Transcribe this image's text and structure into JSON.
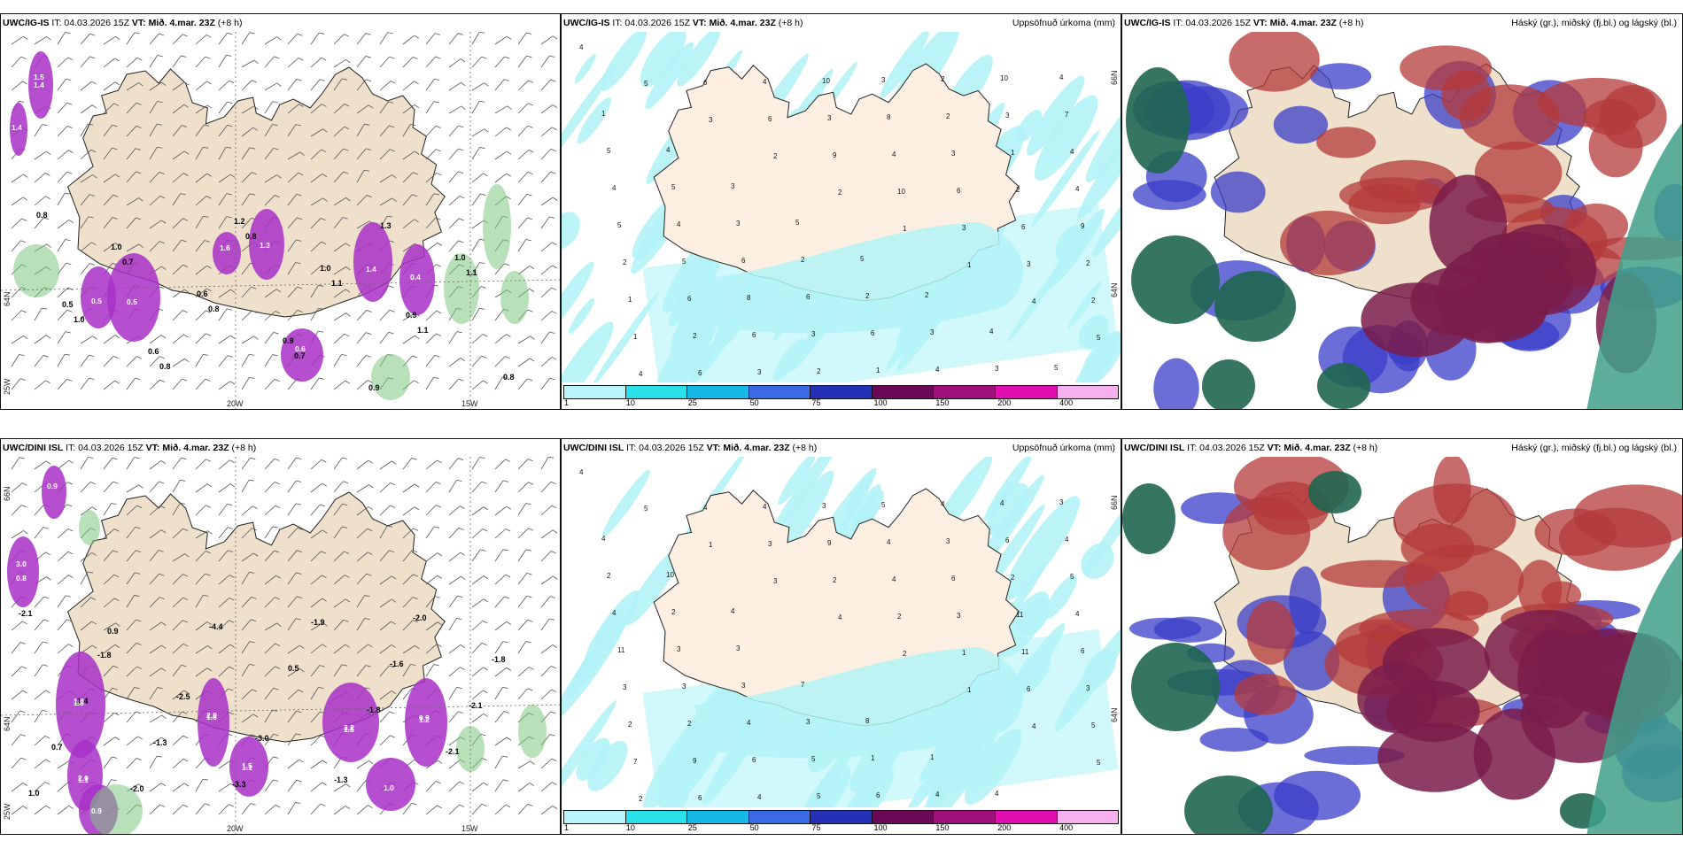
{
  "colors": {
    "land": "#efe0cb",
    "precip_light": "#b3f3f6",
    "magenta": "#a830c8",
    "green": "#7fc87f",
    "highcloud": "#1f6650",
    "midcloud": "#b43a3a",
    "lowcloud": "#3a3ec8",
    "combo": "#7a1c4a"
  },
  "rows": [
    {
      "model": "UWC/IG-IS",
      "it_label": "IT:",
      "it_value": "04.03.2026 15Z",
      "vt_label": "VT:",
      "vt_value": "Mið. 4.mar. 23Z",
      "lead": "(+8 h)",
      "lat_labels": [
        "66N",
        "64N"
      ],
      "lon_labels": [
        "20W",
        "15W"
      ],
      "left_lat": [
        "64N",
        "25W"
      ],
      "panel_b_numbers": [
        "4",
        "5",
        "3",
        "2",
        "2",
        "1",
        "1",
        "4",
        "5",
        "4",
        "6",
        "6",
        "9",
        "10",
        "3",
        "3",
        "2",
        "1",
        "6",
        "4",
        "3",
        "4",
        "6",
        "6",
        "2",
        "1",
        "2",
        "3",
        "10",
        "8",
        "3",
        "2",
        "9",
        "2",
        "6",
        "6",
        "2",
        "3",
        "2",
        "1",
        "4",
        "5",
        "5",
        "8",
        "3",
        "1",
        "2",
        "3",
        "4",
        "4",
        "4",
        "6",
        "6",
        "6",
        "4",
        "10",
        "7",
        "5",
        "5",
        "3",
        "2",
        "2",
        "3",
        "3",
        "4",
        "1",
        "4",
        "3",
        "5",
        "5",
        "2",
        "4",
        "5"
      ],
      "panel_a_bold": [
        "0.8",
        "0.7",
        "0.8",
        "0.7",
        "1.3",
        "1.1",
        "1.0",
        "0.8",
        "0.8",
        "1.1",
        "1.1",
        "0.8",
        "1.0",
        "0.6",
        "0.9",
        "0.9",
        "1.0",
        "0.5",
        "0.6",
        "1.2",
        "1.0",
        "0.9"
      ],
      "panel_a_white": [
        "1.5",
        "1.4",
        "0.5",
        "1.6",
        "1.3",
        "1.4",
        "0.4",
        "0.5",
        "0.6",
        "1.4"
      ]
    },
    {
      "model": "UWC/DINI ISL",
      "it_label": "IT:",
      "it_value": "04.03.2026 15Z",
      "vt_label": "VT:",
      "vt_value": "Mið. 4.mar. 23Z",
      "lead": "(+8 h)",
      "lat_labels": [
        "66N",
        "64N"
      ],
      "lon_labels": [
        "20W",
        "15W"
      ],
      "left_lat": [
        "66N",
        "64N",
        "25W"
      ],
      "panel_b_numbers": [
        "4",
        "5",
        "1",
        "3",
        "4",
        "2",
        "1",
        "4",
        "5",
        "2",
        "4",
        "3",
        "2",
        "2",
        "1",
        "6",
        "5",
        "7",
        "6",
        "4",
        "9",
        "4",
        "3",
        "11",
        "3",
        "2",
        "9",
        "4",
        "3",
        "4",
        "6",
        "11",
        "6",
        "3",
        "2",
        "6",
        "5",
        "5",
        "3",
        "2",
        "4",
        "11",
        "3",
        "4",
        "5",
        "6",
        "4",
        "6",
        "5",
        "4",
        "3",
        "3",
        "3",
        "1",
        "4",
        "4",
        "4",
        "2",
        "2",
        "3",
        "7",
        "8",
        "1",
        "4",
        "3",
        "4",
        "10",
        "4"
      ],
      "panel_a_bold": [
        "-2.1",
        "-1.8",
        "-2.5",
        "-3.0",
        "-1.3",
        "-2.0",
        "-1.8",
        "-1.4",
        "-1.3",
        "-3.3",
        "-1.9",
        "-1.6",
        "-2.1",
        "0.7",
        "-2.0",
        "-4.4",
        "0.5",
        "-1.8",
        "-2.1",
        "1.0",
        "0.9"
      ],
      "panel_a_white": [
        "3.0",
        "1.8",
        "1.1",
        "1.6",
        "1.1",
        "1.5",
        "1.2",
        "1.0",
        "0.9",
        "0.9",
        "0.8",
        "1.0",
        "2.0",
        "2.9",
        "1.5",
        "3.2",
        "0.9"
      ]
    }
  ],
  "panel_b_title": "Uppsöfnuð úrkoma (mm)",
  "panel_c_title": "Háský (gr.), miðský (fj.bl.) og lágský (bl.)",
  "colorbar": {
    "ticks": [
      "1",
      "10",
      "25",
      "50",
      "75",
      "100",
      "150",
      "200",
      "400"
    ],
    "colors": [
      "#b8f5f8",
      "#27e0e8",
      "#16b9e6",
      "#3a6ae6",
      "#2430b8",
      "#6a0a55",
      "#a0107a",
      "#e010b0",
      "#f5b0f0"
    ]
  }
}
